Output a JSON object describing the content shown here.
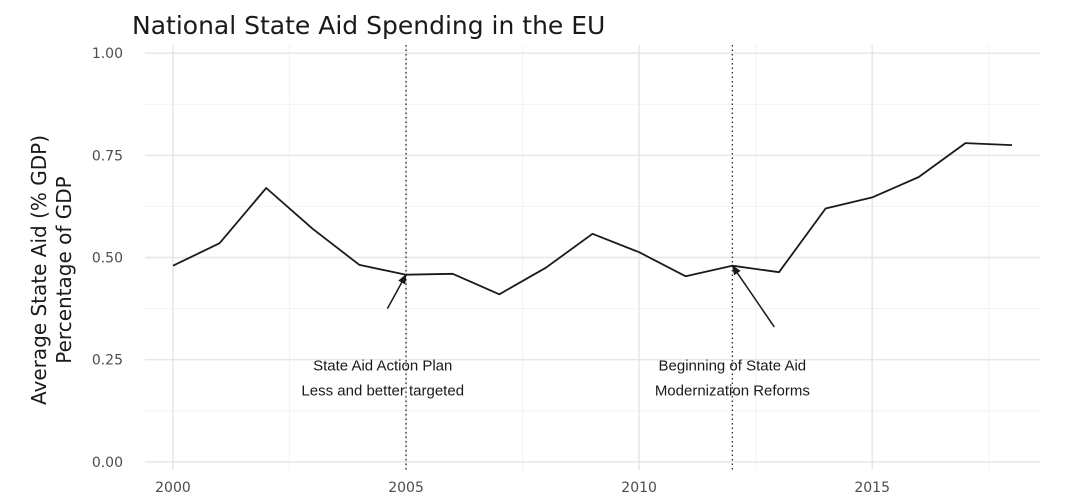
{
  "chart_data": {
    "type": "line",
    "title": "National State Aid Spending in the EU",
    "ylabel_line1": "Average State Aid (% GDP)",
    "ylabel_line2": "Percentage of GDP",
    "xlabel": "",
    "xlim": [
      1999.4,
      2018.6
    ],
    "ylim": [
      -0.02,
      1.02
    ],
    "x_ticks": [
      2000,
      2005,
      2010,
      2015
    ],
    "x_tick_labels": [
      "2000",
      "2005",
      "2010",
      "2015"
    ],
    "y_ticks": [
      0,
      0.25,
      0.5,
      0.75,
      1.0
    ],
    "y_tick_labels": [
      "0.00",
      "0.25",
      "0.50",
      "0.75",
      "1.00"
    ],
    "grid": true,
    "series": [
      {
        "x": [
          2000,
          2001,
          2002,
          2003,
          2004,
          2005,
          2006,
          2007,
          2008,
          2009,
          2010,
          2011,
          2012,
          2013,
          2014,
          2015,
          2016,
          2017,
          2018
        ],
        "values": [
          0.48,
          0.535,
          0.67,
          0.57,
          0.482,
          0.458,
          0.46,
          0.41,
          0.475,
          0.558,
          0.513,
          0.454,
          0.48,
          0.464,
          0.62,
          0.647,
          0.697,
          0.78,
          0.775
        ],
        "color": "#1a1a1a"
      }
    ],
    "vlines": [
      2005,
      2012
    ],
    "annotations": [
      {
        "lines": [
          "State Aid Action Plan",
          "Less and better targeted"
        ],
        "text_x": 2004.5,
        "text_y": 0.265,
        "arrow_from": [
          2004.6,
          0.375
        ],
        "arrow_to": [
          2005,
          0.458
        ]
      },
      {
        "lines": [
          "Beginning of State Aid",
          "Modernization Reforms"
        ],
        "text_x": 2012.0,
        "text_y": 0.265,
        "arrow_from": [
          2012.9,
          0.33
        ],
        "arrow_to": [
          2012,
          0.48
        ]
      }
    ]
  }
}
